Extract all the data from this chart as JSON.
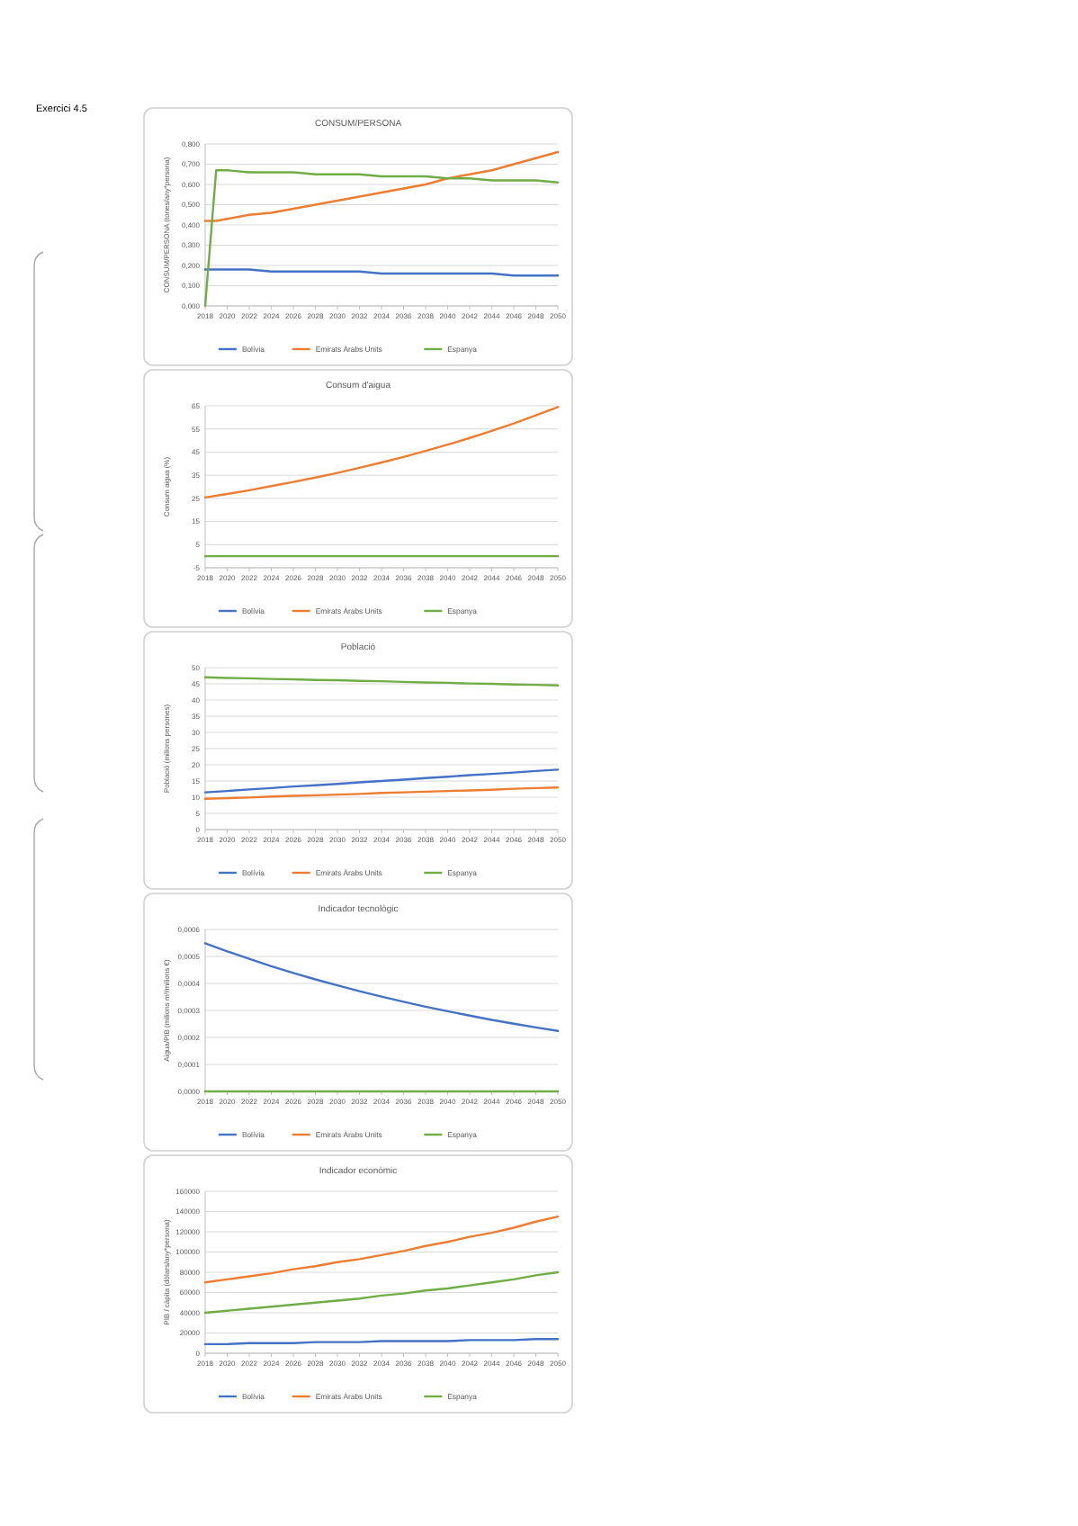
{
  "chart_data": [
    {
      "type": "line",
      "title": "CONSUM/PERSONA",
      "ylabel": "CONSUM/PERSONA (tones/any*persona)",
      "annotations": [
        "Exercici 4.5"
      ],
      "x": [
        2018,
        2019,
        2020,
        2022,
        2024,
        2026,
        2028,
        2030,
        2032,
        2034,
        2036,
        2038,
        2040,
        2042,
        2044,
        2046,
        2048,
        2050
      ],
      "xlim": [
        2018,
        2050
      ],
      "xticks": [
        2018,
        2020,
        2022,
        2024,
        2026,
        2028,
        2030,
        2032,
        2034,
        2036,
        2038,
        2040,
        2042,
        2044,
        2046,
        2048,
        2050
      ],
      "ylim": [
        0,
        0.8
      ],
      "yticks": [
        {
          "value": 0,
          "label": "0,000"
        },
        {
          "value": 0.1,
          "label": "0,100"
        },
        {
          "value": 0.2,
          "label": "0,200"
        },
        {
          "value": 0.3,
          "label": "0,300"
        },
        {
          "value": 0.4,
          "label": "0,400"
        },
        {
          "value": 0.5,
          "label": "0,500"
        },
        {
          "value": 0.6,
          "label": "0,600"
        },
        {
          "value": 0.7,
          "label": "0,700"
        },
        {
          "value": 0.8,
          "label": "0,800"
        }
      ],
      "grid": "y",
      "legend": "bottom",
      "series": [
        {
          "name": "Bolívia",
          "color": "#4472c4",
          "values": [
            0.18,
            0.18,
            0.18,
            0.18,
            0.17,
            0.17,
            0.17,
            0.17,
            0.17,
            0.16,
            0.16,
            0.16,
            0.16,
            0.16,
            0.16,
            0.15,
            0.15,
            0.15
          ]
        },
        {
          "name": "Emirats Àrabs Units",
          "color": "#ed7d31",
          "values": [
            0.42,
            0.42,
            0.43,
            0.45,
            0.46,
            0.48,
            0.5,
            0.52,
            0.54,
            0.56,
            0.58,
            0.6,
            0.63,
            0.65,
            0.67,
            0.7,
            0.73,
            0.76
          ]
        },
        {
          "name": "Espanya",
          "color": "#70ad47",
          "values": [
            0,
            0.67,
            0.67,
            0.66,
            0.66,
            0.66,
            0.65,
            0.65,
            0.65,
            0.64,
            0.64,
            0.64,
            0.63,
            0.63,
            0.62,
            0.62,
            0.62,
            0.61
          ]
        }
      ]
    },
    {
      "type": "line",
      "title": "Consum d'aigua",
      "ylabel": "Consum aigua (%)",
      "x": [
        2018,
        2020,
        2022,
        2024,
        2026,
        2028,
        2030,
        2032,
        2034,
        2036,
        2038,
        2040,
        2042,
        2044,
        2046,
        2048,
        2050
      ],
      "xlim": [
        2018,
        2050
      ],
      "xticks": [
        2018,
        2020,
        2022,
        2024,
        2026,
        2028,
        2030,
        2032,
        2034,
        2036,
        2038,
        2040,
        2042,
        2044,
        2046,
        2048,
        2050
      ],
      "ylim": [
        -5,
        65
      ],
      "yticks": [
        -5,
        5,
        15,
        25,
        35,
        45,
        55,
        65
      ],
      "grid": "y",
      "legend": "bottom",
      "series": [
        {
          "name": "Bolívia",
          "color": "#4472c4",
          "values": [
            null,
            null,
            null,
            null,
            null,
            null,
            null,
            null,
            null,
            null,
            null,
            null,
            null,
            null,
            null,
            null,
            null
          ]
        },
        {
          "name": "Emirats Àrabs Units",
          "color": "#ed7d31",
          "values": [
            25.4,
            26.9,
            28.5,
            30.3,
            32.1,
            34.0,
            36.0,
            38.2,
            40.5,
            42.9,
            45.5,
            48.2,
            51.1,
            54.2,
            57.4,
            60.9,
            64.5
          ]
        },
        {
          "name": "Espanya",
          "color": "#70ad47",
          "values": [
            0,
            0,
            0,
            0,
            0,
            0,
            0,
            0,
            0,
            0,
            0,
            0,
            0,
            0,
            0,
            0,
            0
          ]
        }
      ]
    },
    {
      "type": "line",
      "title": "Població",
      "ylabel": "Població (milions persones)",
      "x": [
        2018,
        2020,
        2022,
        2024,
        2026,
        2028,
        2030,
        2032,
        2034,
        2036,
        2038,
        2040,
        2042,
        2044,
        2046,
        2048,
        2050
      ],
      "xlim": [
        2018,
        2050
      ],
      "xticks": [
        2018,
        2020,
        2022,
        2024,
        2026,
        2028,
        2030,
        2032,
        2034,
        2036,
        2038,
        2040,
        2042,
        2044,
        2046,
        2048,
        2050
      ],
      "ylim": [
        0,
        50
      ],
      "yticks": [
        0,
        5,
        10,
        15,
        20,
        25,
        30,
        35,
        40,
        45,
        50
      ],
      "grid": "y",
      "legend": "bottom",
      "series": [
        {
          "name": "Bolívia",
          "color": "#4472c4",
          "values": [
            11.5,
            11.9,
            12.4,
            12.8,
            13.3,
            13.7,
            14.1,
            14.6,
            15.0,
            15.4,
            15.9,
            16.3,
            16.8,
            17.2,
            17.6,
            18.1,
            18.5
          ]
        },
        {
          "name": "Emirats Àrabs Units",
          "color": "#ed7d31",
          "values": [
            9.5,
            9.7,
            9.9,
            10.2,
            10.4,
            10.6,
            10.8,
            11.0,
            11.3,
            11.5,
            11.7,
            11.9,
            12.1,
            12.3,
            12.6,
            12.8,
            13.0
          ]
        },
        {
          "name": "Espanya",
          "color": "#70ad47",
          "values": [
            47.0,
            46.8,
            46.7,
            46.5,
            46.4,
            46.2,
            46.1,
            45.9,
            45.8,
            45.6,
            45.4,
            45.3,
            45.1,
            45.0,
            44.8,
            44.7,
            44.5
          ]
        }
      ]
    },
    {
      "type": "line",
      "title": "Indicador tecnològic",
      "ylabel": "Aigua/PIB (milions m³/milions €)",
      "x": [
        2018,
        2020,
        2022,
        2024,
        2026,
        2028,
        2030,
        2032,
        2034,
        2036,
        2038,
        2040,
        2042,
        2044,
        2046,
        2048,
        2050
      ],
      "xlim": [
        2018,
        2050
      ],
      "xticks": [
        2018,
        2020,
        2022,
        2024,
        2026,
        2028,
        2030,
        2032,
        2034,
        2036,
        2038,
        2040,
        2042,
        2044,
        2046,
        2048,
        2050
      ],
      "ylim": [
        0,
        0.0006
      ],
      "yticks": [
        {
          "value": 0,
          "label": "0,0000"
        },
        {
          "value": 0.0001,
          "label": "0,0001"
        },
        {
          "value": 0.0002,
          "label": "0,0002"
        },
        {
          "value": 0.0003,
          "label": "0,0003"
        },
        {
          "value": 0.0004,
          "label": "0,0004"
        },
        {
          "value": 0.0005,
          "label": "0,0005"
        },
        {
          "value": 0.0006,
          "label": "0,0006"
        }
      ],
      "grid": "y",
      "legend": "bottom",
      "series": [
        {
          "name": "Bolívia",
          "color": "#4472c4",
          "values": [
            0.000549,
            0.000519,
            0.000491,
            0.000464,
            0.000439,
            0.000415,
            0.000393,
            0.000371,
            0.000351,
            0.000332,
            0.000314,
            0.000297,
            0.000281,
            0.000265,
            0.000251,
            0.000237,
            0.000224
          ]
        },
        {
          "name": "Emirats Àrabs Units",
          "color": "#ed7d31",
          "values": [
            null,
            null,
            null,
            null,
            null,
            null,
            null,
            null,
            null,
            null,
            null,
            null,
            null,
            null,
            null,
            null,
            null
          ]
        },
        {
          "name": "Espanya",
          "color": "#70ad47",
          "values": [
            0,
            0,
            0,
            0,
            0,
            0,
            0,
            0,
            0,
            0,
            0,
            0,
            0,
            0,
            0,
            0,
            0
          ]
        }
      ]
    },
    {
      "type": "line",
      "title": "Indicador econòmic",
      "ylabel": "PIB / càpita (dòlars/any*persona)",
      "x": [
        2018,
        2020,
        2022,
        2024,
        2026,
        2028,
        2030,
        2032,
        2034,
        2036,
        2038,
        2040,
        2042,
        2044,
        2046,
        2048,
        2050
      ],
      "xlim": [
        2018,
        2050
      ],
      "xticks": [
        2018,
        2020,
        2022,
        2024,
        2026,
        2028,
        2030,
        2032,
        2034,
        2036,
        2038,
        2040,
        2042,
        2044,
        2046,
        2048,
        2050
      ],
      "ylim": [
        0,
        160000
      ],
      "yticks": [
        0,
        20000,
        40000,
        60000,
        80000,
        100000,
        120000,
        140000,
        160000
      ],
      "grid": "y",
      "legend": "bottom",
      "series": [
        {
          "name": "Bolívia",
          "color": "#4472c4",
          "values": [
            9000,
            9000,
            10000,
            10000,
            10000,
            11000,
            11000,
            11000,
            12000,
            12000,
            12000,
            12000,
            13000,
            13000,
            13000,
            14000,
            14000
          ]
        },
        {
          "name": "Emirats Àrabs Units",
          "color": "#ed7d31",
          "values": [
            70000,
            73000,
            76000,
            79000,
            83000,
            86000,
            90000,
            93000,
            97000,
            101000,
            106000,
            110000,
            115000,
            119000,
            124000,
            130000,
            135000
          ]
        },
        {
          "name": "Espanya",
          "color": "#70ad47",
          "values": [
            40000,
            42000,
            44000,
            46000,
            48000,
            50000,
            52000,
            54000,
            57000,
            59000,
            62000,
            64000,
            67000,
            70000,
            73000,
            77000,
            80000
          ]
        }
      ]
    }
  ]
}
